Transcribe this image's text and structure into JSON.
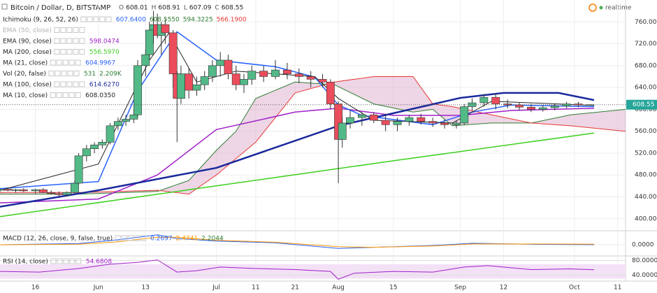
{
  "chart_data": {
    "type": "candlestick",
    "title": "Bitcoin / Dollar, D, BITSTAMP",
    "ohlc_letters": [
      "O",
      "H",
      "L",
      "C"
    ],
    "status": "realtime",
    "up_color": "#53b987",
    "down_color": "#eb4d5c",
    "grid": true,
    "xlim": [
      0,
      159
    ],
    "xticks": [
      {
        "value": 9,
        "label": "16"
      },
      {
        "value": 25,
        "label": "Jun"
      },
      {
        "value": 37,
        "label": "13"
      },
      {
        "value": 55,
        "label": "Jul"
      },
      {
        "value": 65,
        "label": "11"
      },
      {
        "value": 75,
        "label": "21"
      },
      {
        "value": 86,
        "label": "Aug"
      },
      {
        "value": 100,
        "label": "15"
      },
      {
        "value": 117,
        "label": "Sep"
      },
      {
        "value": 128,
        "label": "12"
      },
      {
        "value": 146,
        "label": "Oct"
      },
      {
        "value": 157,
        "label": "11"
      }
    ],
    "ylim": [
      378,
      800
    ],
    "yticks": [
      {
        "value": 400,
        "label": "400.00"
      },
      {
        "value": 440,
        "label": "440.00"
      },
      {
        "value": 480,
        "label": "480.00"
      },
      {
        "value": 520,
        "label": "520.00"
      },
      {
        "value": 560,
        "label": "560.00"
      },
      {
        "value": 600,
        "label": "600.00"
      },
      {
        "value": 640,
        "label": "640.00"
      },
      {
        "value": 680,
        "label": "680.00"
      },
      {
        "value": 720,
        "label": "720.00"
      },
      {
        "value": 760,
        "label": "760.00"
      }
    ],
    "x": [
      0,
      2,
      4,
      6,
      9,
      11,
      13,
      15,
      17,
      19,
      20,
      22,
      24,
      26,
      28,
      30,
      32,
      34,
      35,
      37,
      38,
      39,
      40,
      41,
      42,
      44,
      45,
      46,
      48,
      50,
      52,
      54,
      56,
      58,
      60,
      62,
      64,
      67,
      70,
      73,
      76,
      79,
      82,
      84,
      86,
      87,
      89,
      92,
      95,
      98,
      101,
      104,
      107,
      110,
      113,
      116,
      118,
      120,
      123,
      126,
      129,
      132,
      135,
      138,
      141,
      144,
      147,
      150
    ],
    "open": [
      452,
      454,
      452,
      453,
      451,
      453,
      448,
      446,
      444,
      448,
      465,
      515,
      528,
      535,
      540,
      570,
      578,
      582,
      590,
      680,
      700,
      745,
      755,
      735,
      755,
      740,
      665,
      620,
      665,
      635,
      645,
      660,
      680,
      690,
      665,
      645,
      655,
      670,
      660,
      672,
      665,
      660,
      655,
      650,
      610,
      545,
      575,
      585,
      590,
      580,
      572,
      578,
      585,
      578,
      575,
      572,
      575,
      605,
      612,
      622,
      610,
      608,
      604,
      600,
      603,
      606,
      610,
      608.01
    ],
    "high": [
      456,
      457,
      455,
      456,
      455,
      456,
      452,
      450,
      450,
      470,
      520,
      535,
      540,
      545,
      575,
      585,
      590,
      600,
      690,
      710,
      760,
      780,
      775,
      760,
      765,
      745,
      670,
      680,
      675,
      660,
      670,
      690,
      705,
      700,
      680,
      665,
      680,
      680,
      690,
      685,
      675,
      670,
      665,
      655,
      615,
      585,
      600,
      595,
      595,
      590,
      585,
      590,
      592,
      585,
      582,
      580,
      610,
      620,
      628,
      630,
      618,
      612,
      610,
      608,
      610,
      614,
      614,
      608.91
    ],
    "low": [
      448,
      450,
      448,
      449,
      446,
      447,
      444,
      440,
      441,
      446,
      462,
      505,
      520,
      528,
      536,
      562,
      570,
      575,
      585,
      660,
      690,
      720,
      730,
      700,
      720,
      640,
      540,
      610,
      620,
      625,
      635,
      650,
      660,
      655,
      635,
      630,
      645,
      650,
      655,
      655,
      648,
      640,
      640,
      600,
      465,
      530,
      565,
      570,
      575,
      560,
      560,
      570,
      572,
      568,
      565,
      565,
      572,
      598,
      605,
      600,
      602,
      598,
      595,
      596,
      598,
      602,
      604,
      607.09
    ],
    "close": [
      454,
      452,
      453,
      451,
      453,
      448,
      446,
      444,
      448,
      465,
      515,
      528,
      535,
      540,
      570,
      578,
      582,
      590,
      680,
      700,
      745,
      755,
      735,
      755,
      740,
      665,
      620,
      665,
      635,
      645,
      660,
      680,
      690,
      665,
      645,
      655,
      670,
      660,
      672,
      665,
      660,
      655,
      650,
      610,
      545,
      575,
      585,
      590,
      580,
      572,
      578,
      585,
      578,
      575,
      572,
      575,
      605,
      612,
      622,
      610,
      608,
      604,
      600,
      603,
      606,
      610,
      608,
      608.55
    ],
    "indicators": [
      {
        "name": "Ichimoku (9, 26, 52, 26)",
        "readout": [
          "607.6400",
          "608.5550",
          "594.3225",
          "566.1900"
        ],
        "readout_colors": [
          "#2962ff",
          "#2e7d32",
          "#2e7d32",
          "#e53935"
        ],
        "color": "#2e7d32",
        "color_b": "#e53935",
        "x": [
          0,
          20,
          40,
          48,
          55,
          60,
          65,
          75,
          85,
          95,
          105,
          110,
          115,
          125,
          135,
          145,
          159
        ],
        "span_a": [
          445,
          445,
          450,
          470,
          525,
          560,
          620,
          650,
          645,
          610,
          595,
          600,
          570,
          575,
          575,
          590,
          600
        ],
        "span_b": [
          448,
          448,
          452,
          445,
          480,
          510,
          540,
          630,
          650,
          660,
          660,
          610,
          605,
          590,
          575,
          570,
          560
        ]
      },
      {
        "name": "EMA (50, close)",
        "readout": [],
        "color": "#b0b0b0"
      },
      {
        "name": "EMA (90, close)",
        "readout": [
          "598.0474"
        ],
        "color": "#a020c8",
        "x": [
          0,
          25,
          40,
          55,
          75,
          86,
          100,
          117,
          130,
          151
        ],
        "values": [
          429,
          436,
          480,
          563,
          595,
          602,
          589,
          589,
          598,
          602
        ]
      },
      {
        "name": "MA (200, close)",
        "readout": [
          "556.5970"
        ],
        "color": "#3ecf1f",
        "x": [
          0,
          50,
          100,
          151
        ],
        "values": [
          404,
          455,
          506,
          556.6
        ]
      },
      {
        "name": "MA (21, close)",
        "readout": [
          "604.9967"
        ],
        "color": "#2962ff",
        "x": [
          0,
          25,
          35,
          45,
          55,
          70,
          80,
          86,
          92,
          110,
          120,
          130,
          151
        ],
        "values": [
          455,
          468,
          634,
          742,
          690,
          678,
          659,
          608,
          589,
          572,
          595,
          608,
          605
        ]
      },
      {
        "name": "Vol (20, false)",
        "readout": [
          "531",
          "2.209K"
        ],
        "color": "#2e7d32"
      },
      {
        "name": "MA (100, close)",
        "readout": [
          "614.6270"
        ],
        "color": "#1a2a9c",
        "x": [
          0,
          25,
          55,
          86,
          117,
          128,
          142,
          151
        ],
        "values": [
          422,
          452,
          493,
          570,
          621,
          630,
          630,
          617
        ]
      },
      {
        "name": "MA (10, close)",
        "readout": [
          "608.0350"
        ],
        "color": "#222222",
        "x": [
          0,
          25,
          38,
          43,
          50,
          60,
          80,
          86,
          95,
          115,
          125,
          151
        ],
        "values": [
          452,
          500,
          690,
          740,
          650,
          670,
          660,
          620,
          580,
          575,
          615,
          607
        ]
      }
    ],
    "macd": {
      "name": "MACD (12, 26, close, 9, false, true)",
      "readout": [
        "0.2697",
        "2.4741",
        "2.2044"
      ],
      "readout_colors": [
        "#2962ff",
        "#ff9800",
        "#2e7d32"
      ],
      "ylim": [
        -45,
        45
      ],
      "yticks": [
        {
          "value": 0,
          "label": "0.0000"
        }
      ],
      "x": [
        0,
        20,
        30,
        40,
        45,
        55,
        70,
        86,
        95,
        110,
        120,
        135,
        151
      ],
      "macd": [
        0,
        5,
        20,
        40,
        25,
        15,
        8,
        -15,
        -10,
        -3,
        6,
        2,
        0.2697
      ],
      "macd_color": "#2962ff",
      "signal": [
        0,
        2,
        12,
        30,
        30,
        18,
        10,
        -8,
        -10,
        -5,
        3,
        3,
        2.4741
      ],
      "signal_color": "#ff9800"
    },
    "rsi": {
      "name": "RSI (14, close)",
      "readout": [
        "54.6808"
      ],
      "color": "#a020c8",
      "band": [
        30,
        70
      ],
      "ylim": [
        23,
        91
      ],
      "yticks": [
        {
          "value": 80,
          "label": "80.0000"
        },
        {
          "value": 40,
          "label": "40.0000"
        }
      ],
      "x": [
        0,
        10,
        20,
        28,
        35,
        40,
        45,
        50,
        56,
        65,
        75,
        84,
        86,
        90,
        100,
        110,
        118,
        124,
        135,
        145,
        151
      ],
      "values": [
        50,
        48,
        58,
        70,
        75,
        82,
        48,
        52,
        62,
        58,
        55,
        50,
        28,
        45,
        50,
        48,
        62,
        66,
        55,
        57,
        54.68
      ]
    }
  }
}
